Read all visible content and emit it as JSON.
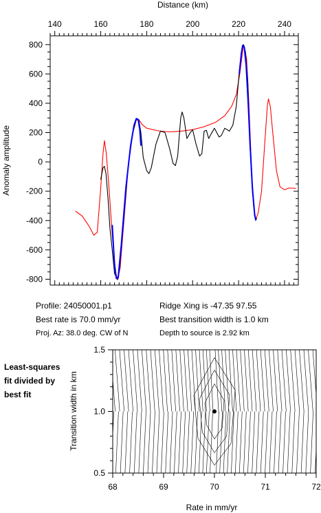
{
  "chart_data": [
    {
      "type": "line",
      "xlabel": "Distance (km)",
      "ylabel": "Anomaly amplitude",
      "xlim": [
        138,
        246
      ],
      "ylim": [
        -840,
        860
      ],
      "xticks": [
        140,
        160,
        180,
        200,
        220,
        240
      ],
      "yticks": [
        -800,
        -600,
        -400,
        -200,
        0,
        200,
        400,
        600,
        800
      ],
      "xaxis_position": "top",
      "series": [
        {
          "color": "#ff0000",
          "points": [
            [
              149,
              -335
            ],
            [
              152,
              -370
            ],
            [
              155,
              -440
            ],
            [
              157,
              -500
            ],
            [
              158.5,
              -480
            ],
            [
              160,
              -180
            ],
            [
              161,
              60
            ],
            [
              161.6,
              145
            ],
            [
              162.4,
              60
            ],
            [
              163.5,
              -150
            ],
            [
              165,
              -500
            ],
            [
              166.5,
              -760
            ],
            [
              167.4,
              -805
            ],
            [
              168.5,
              -720
            ],
            [
              170,
              -420
            ],
            [
              172,
              -30
            ],
            [
              174,
              200
            ],
            [
              175.5,
              285
            ],
            [
              176.5,
              290
            ],
            [
              178,
              255
            ],
            [
              180,
              230
            ],
            [
              185,
              212
            ],
            [
              190,
              205
            ],
            [
              195,
              210
            ],
            [
              200,
              220
            ],
            [
              205,
              240
            ],
            [
              210,
              270
            ],
            [
              214,
              315
            ],
            [
              217,
              380
            ],
            [
              219,
              460
            ],
            [
              220.5,
              600
            ],
            [
              221.5,
              720
            ],
            [
              222,
              785
            ],
            [
              222.5,
              790
            ],
            [
              223.5,
              700
            ],
            [
              224.5,
              400
            ],
            [
              225.5,
              0
            ],
            [
              226.5,
              -300
            ],
            [
              227.5,
              -390
            ],
            [
              228.5,
              -350
            ],
            [
              230,
              -200
            ],
            [
              231.5,
              150
            ],
            [
              232.5,
              380
            ],
            [
              233,
              430
            ],
            [
              233.8,
              380
            ],
            [
              235,
              180
            ],
            [
              236.5,
              -60
            ],
            [
              238,
              -170
            ],
            [
              240,
              -190
            ],
            [
              242,
              -178
            ],
            [
              245,
              -180
            ]
          ]
        },
        {
          "color": "#000000",
          "points": [
            [
              160,
              -120
            ],
            [
              161,
              -40
            ],
            [
              161.6,
              -30
            ],
            [
              162.3,
              -80
            ],
            [
              163.2,
              -250
            ],
            [
              164,
              -450
            ],
            [
              165,
              -600
            ],
            [
              166,
              -760
            ],
            [
              167.2,
              -800
            ],
            [
              168.2,
              -730
            ],
            [
              170,
              -400
            ],
            [
              172,
              -20
            ],
            [
              174,
              200
            ],
            [
              175.5,
              290
            ],
            [
              176.6,
              285
            ],
            [
              177.5,
              200
            ],
            [
              178.5,
              30
            ],
            [
              180,
              -60
            ],
            [
              181,
              -80
            ],
            [
              182,
              -40
            ],
            [
              184,
              120
            ],
            [
              186,
              210
            ],
            [
              188,
              200
            ],
            [
              190,
              90
            ],
            [
              191.5,
              -10
            ],
            [
              192.5,
              -25
            ],
            [
              193.5,
              40
            ],
            [
              194.8,
              300
            ],
            [
              195.4,
              340
            ],
            [
              196.2,
              300
            ],
            [
              197.5,
              160
            ],
            [
              199,
              200
            ],
            [
              200,
              220
            ],
            [
              201.5,
              120
            ],
            [
              203,
              40
            ],
            [
              204,
              55
            ],
            [
              205,
              210
            ],
            [
              206,
              215
            ],
            [
              207,
              160
            ],
            [
              208,
              190
            ],
            [
              209.5,
              230
            ],
            [
              210.5,
              200
            ],
            [
              211.5,
              170
            ],
            [
              212.5,
              180
            ],
            [
              214,
              230
            ],
            [
              215,
              220
            ],
            [
              216,
              210
            ],
            [
              217.5,
              250
            ],
            [
              219,
              380
            ],
            [
              220.5,
              650
            ],
            [
              221.5,
              770
            ],
            [
              222.2,
              800
            ],
            [
              223,
              750
            ],
            [
              224,
              550
            ],
            [
              225,
              100
            ],
            [
              226,
              -200
            ],
            [
              227,
              -370
            ],
            [
              227.7,
              -390
            ],
            [
              228,
              -385
            ]
          ]
        },
        {
          "color": "#0000ff",
          "points": [
            [
              165,
              -430
            ],
            [
              166,
              -700
            ],
            [
              166.8,
              -795
            ],
            [
              167.6,
              -790
            ],
            [
              169,
              -560
            ],
            [
              171,
              -170
            ],
            [
              173,
              110
            ],
            [
              174.5,
              250
            ],
            [
              175.5,
              295
            ],
            [
              176.3,
              290
            ],
            [
              177,
              220
            ],
            [
              177.5,
              110
            ]
          ]
        },
        {
          "color": "#0000ff",
          "points": [
            [
              220.3,
              600
            ],
            [
              221.2,
              740
            ],
            [
              221.8,
              795
            ],
            [
              222.5,
              780
            ],
            [
              223.3,
              660
            ],
            [
              224.2,
              400
            ],
            [
              225,
              120
            ],
            [
              226,
              -170
            ],
            [
              227,
              -360
            ],
            [
              227.5,
              -400
            ]
          ]
        }
      ]
    },
    {
      "type": "contour",
      "xlabel": "Rate in mm/yr",
      "ylabel": "Transition width in km",
      "xlim": [
        68,
        72
      ],
      "ylim": [
        0.5,
        1.5
      ],
      "xticks": [
        68,
        69,
        70,
        71,
        72
      ],
      "yticks": [
        0.5,
        1.0,
        1.5
      ],
      "best_fit_point": {
        "x": 70.0,
        "y": 1.0
      }
    }
  ],
  "info": {
    "profile": "Profile: 24050001.p1",
    "best_rate": "Best rate is 70.0 mm/yr",
    "proj_az": "Proj. Az: 38.0 deg. CW of N",
    "ridge_xing": "Ridge Xing is -47.35 97.55",
    "best_width": "Best transition width is 1.0 km",
    "depth": "Depth to source is   2.92 km"
  },
  "side_label": {
    "line1": "Least-squares",
    "line2": "fit divided by",
    "line3": "best fit"
  }
}
